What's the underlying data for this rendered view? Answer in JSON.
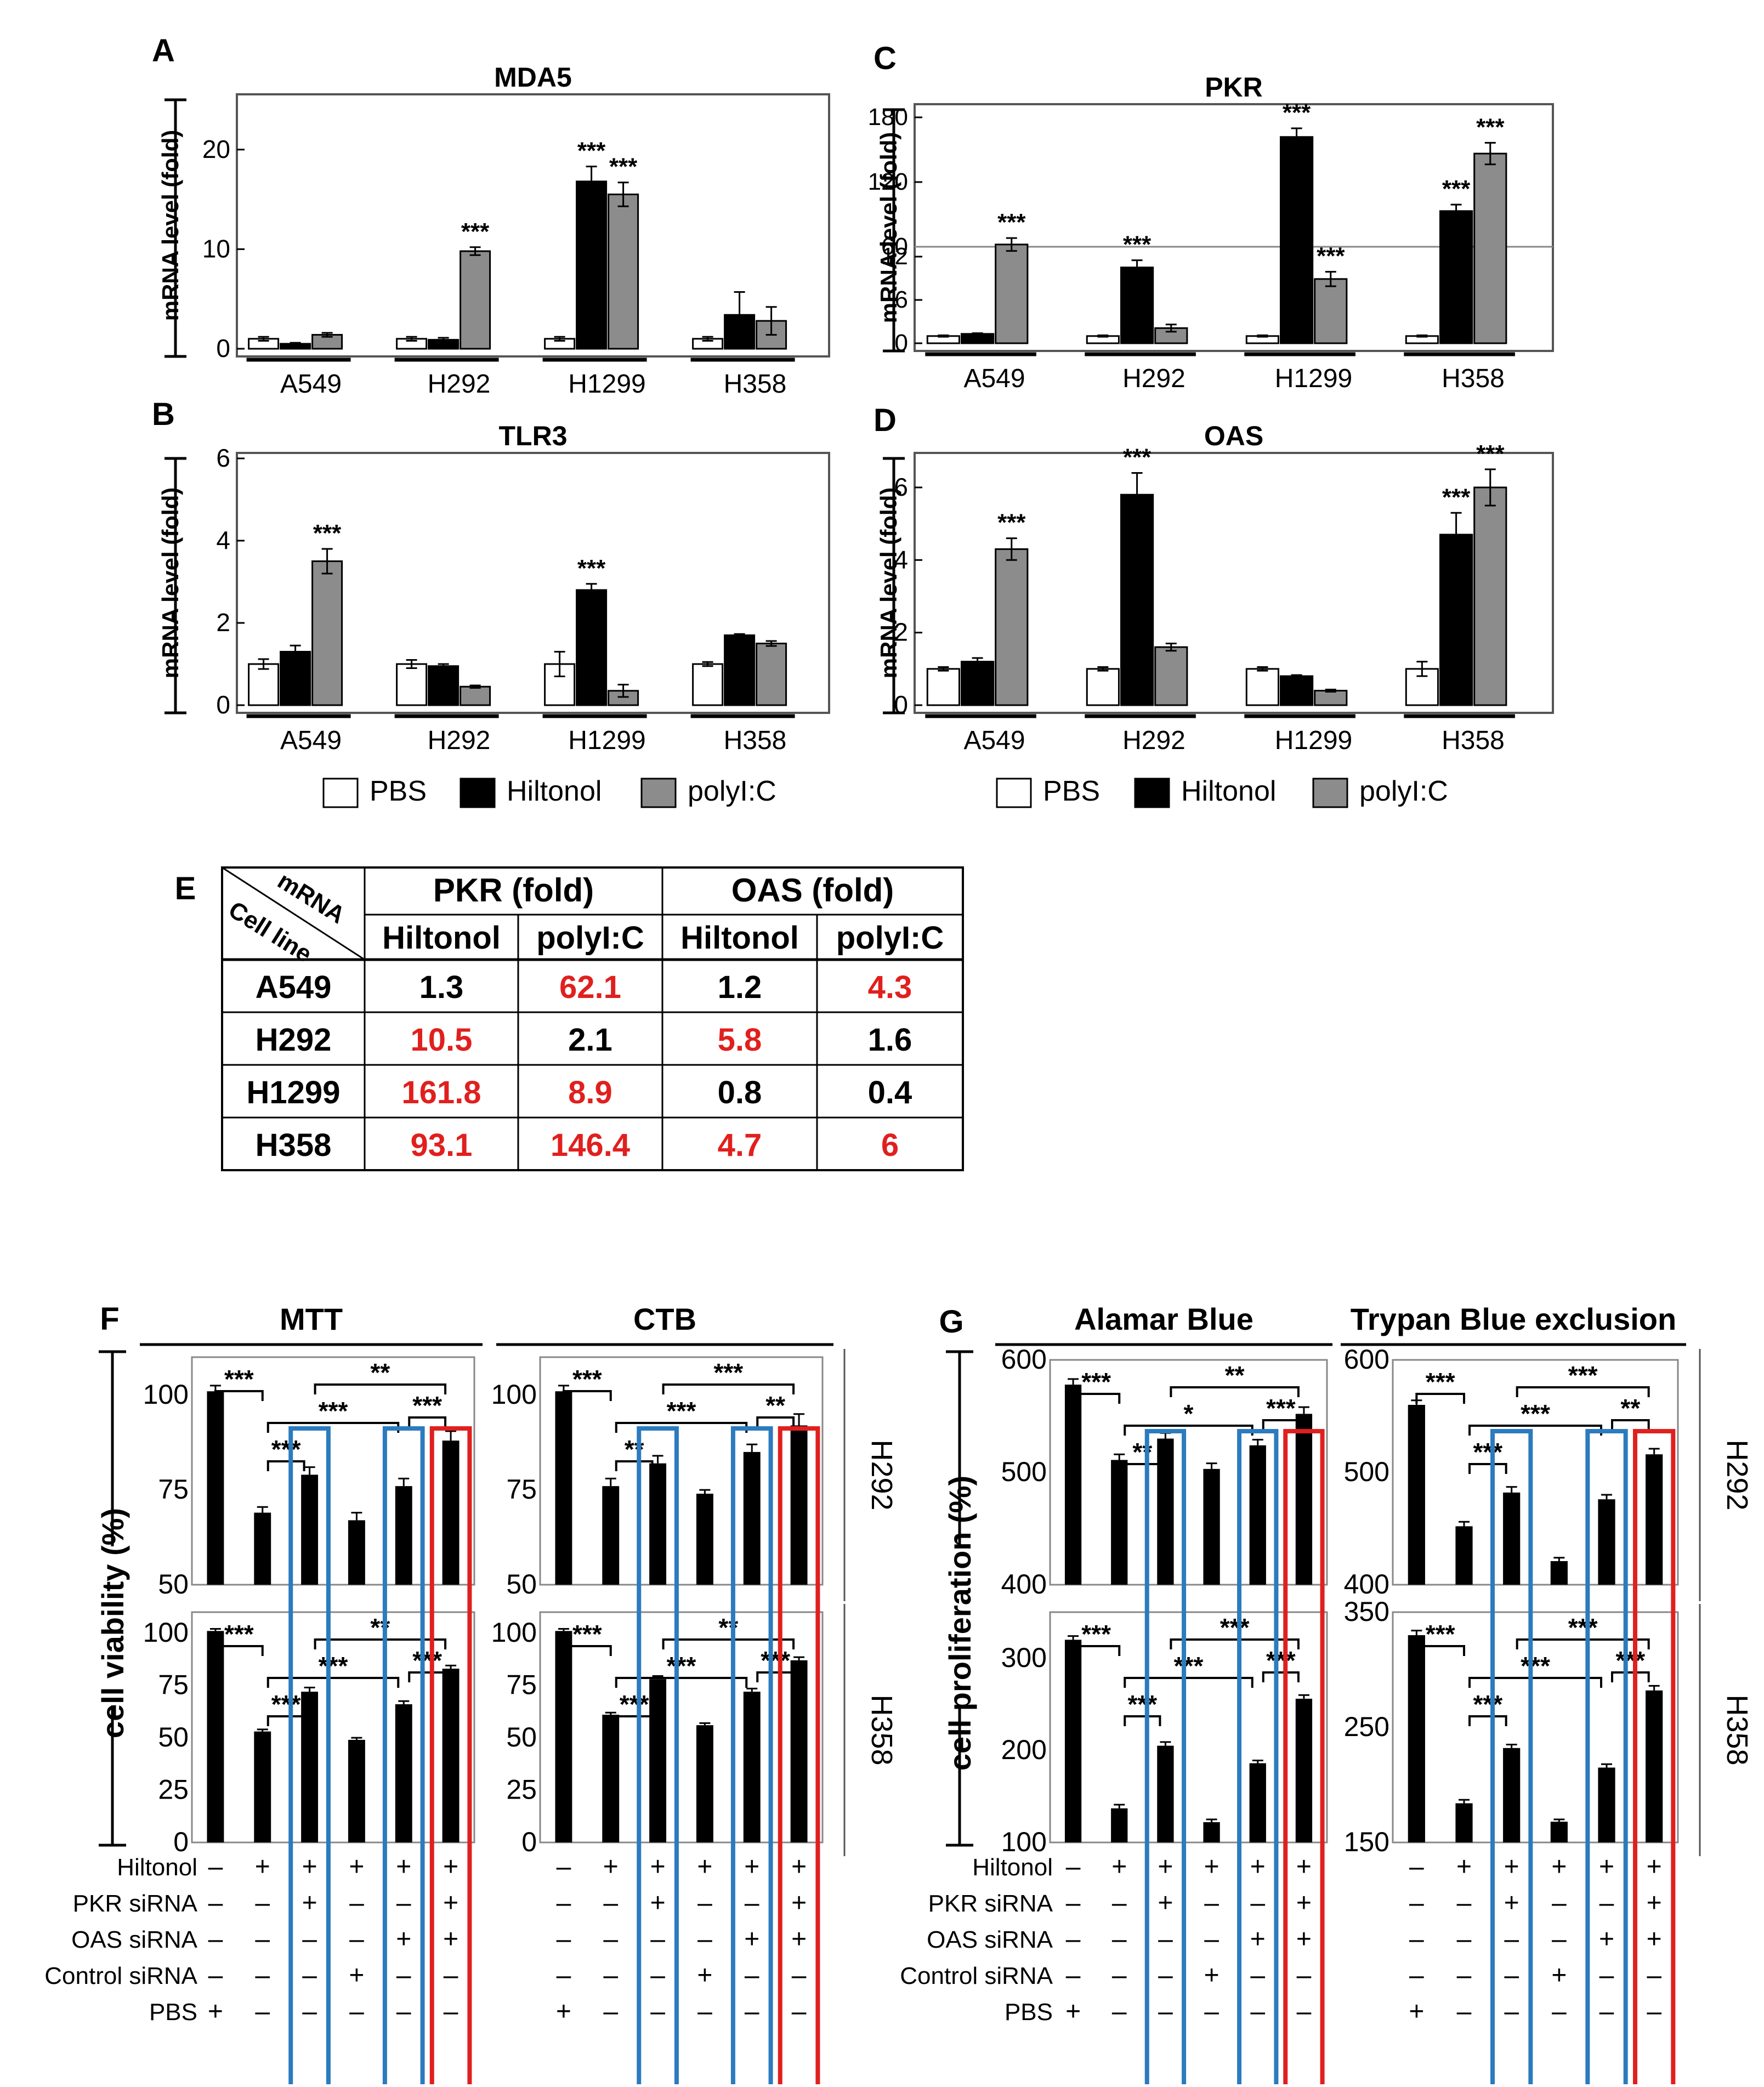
{
  "colors": {
    "pbs": "#ffffff",
    "hiltonol": "#000000",
    "polyIC": "#8c8c8c",
    "red": "#e0201e",
    "blue": "#2b7bbf",
    "black": "#000000"
  },
  "legend": {
    "pbs": "PBS",
    "hiltonol": "Hiltonol",
    "polyIC": "polyI:C"
  },
  "chart_data": [
    {
      "panel": "A",
      "type": "bar",
      "title": "MDA5",
      "ylabel": "mRNA level (fold)",
      "ylim": [
        0,
        25
      ],
      "yticks": [
        0,
        10,
        20
      ],
      "categories": [
        "A549",
        "H292",
        "H1299",
        "H358"
      ],
      "series": [
        {
          "name": "PBS",
          "values": [
            1.0,
            1.0,
            1.0,
            1.0
          ],
          "errors": [
            0.2,
            0.2,
            0.2,
            0.2
          ]
        },
        {
          "name": "Hiltonol",
          "values": [
            0.5,
            0.9,
            16.8,
            3.4
          ],
          "errors": [
            0.1,
            0.2,
            1.5,
            2.3
          ]
        },
        {
          "name": "polyI:C",
          "values": [
            1.4,
            9.8,
            15.5,
            2.8
          ],
          "errors": [
            0.2,
            0.4,
            1.2,
            1.4
          ]
        }
      ],
      "sig": [
        {
          "cat": 1,
          "series": 2,
          "text": "***"
        },
        {
          "cat": 2,
          "series": 1,
          "text": "***"
        },
        {
          "cat": 2,
          "series": 2,
          "text": "***"
        }
      ]
    },
    {
      "panel": "B",
      "type": "bar",
      "title": "TLR3",
      "ylabel": "mRNA level (fold)",
      "ylim": [
        0,
        6
      ],
      "yticks": [
        0,
        2,
        4,
        6
      ],
      "categories": [
        "A549",
        "H292",
        "H1299",
        "H358"
      ],
      "series": [
        {
          "name": "PBS",
          "values": [
            1.0,
            1.0,
            1.0,
            1.0
          ],
          "errors": [
            0.12,
            0.1,
            0.3,
            0.05
          ]
        },
        {
          "name": "Hiltonol",
          "values": [
            1.3,
            0.95,
            2.8,
            1.7
          ],
          "errors": [
            0.15,
            0.05,
            0.15,
            0.03
          ]
        },
        {
          "name": "polyI:C",
          "values": [
            3.5,
            0.45,
            0.35,
            1.5
          ],
          "errors": [
            0.3,
            0.03,
            0.15,
            0.06
          ]
        }
      ],
      "sig": [
        {
          "cat": 0,
          "series": 2,
          "text": "***"
        },
        {
          "cat": 2,
          "series": 1,
          "text": "***"
        }
      ]
    },
    {
      "panel": "C",
      "type": "bar",
      "title": "PKR",
      "ylabel": "mRNA level (fold)",
      "ybreak": [
        12,
        60
      ],
      "lower_ticks": [
        0,
        6,
        12
      ],
      "upper_ticks": [
        60,
        120,
        180
      ],
      "categories": [
        "A549",
        "H292",
        "H1299",
        "H358"
      ],
      "series": [
        {
          "name": "PBS",
          "values": [
            1.0,
            1.0,
            1.0,
            1.0
          ],
          "errors": [
            0.1,
            0.1,
            0.1,
            0.1
          ]
        },
        {
          "name": "Hiltonol",
          "values": [
            1.3,
            10.5,
            161.8,
            93.1
          ],
          "errors": [
            0.1,
            1.0,
            8,
            6
          ]
        },
        {
          "name": "polyI:C",
          "values": [
            62.1,
            2.1,
            8.9,
            146.4
          ],
          "errors": [
            6,
            0.5,
            1.0,
            10
          ]
        }
      ],
      "sig": [
        {
          "cat": 0,
          "series": 2,
          "text": "***"
        },
        {
          "cat": 1,
          "series": 1,
          "text": "***"
        },
        {
          "cat": 2,
          "series": 1,
          "text": "***"
        },
        {
          "cat": 2,
          "series": 2,
          "text": "***"
        },
        {
          "cat": 3,
          "series": 1,
          "text": "***"
        },
        {
          "cat": 3,
          "series": 2,
          "text": "***"
        }
      ]
    },
    {
      "panel": "D",
      "type": "bar",
      "title": "OAS",
      "ylabel": "mRNA level (fold)",
      "ylim": [
        0,
        6.8
      ],
      "yticks": [
        0,
        2,
        4,
        6
      ],
      "categories": [
        "A549",
        "H292",
        "H1299",
        "H358"
      ],
      "series": [
        {
          "name": "PBS",
          "values": [
            1.0,
            1.0,
            1.0,
            1.0
          ],
          "errors": [
            0.05,
            0.05,
            0.05,
            0.2
          ]
        },
        {
          "name": "Hiltonol",
          "values": [
            1.2,
            5.8,
            0.8,
            4.7
          ],
          "errors": [
            0.1,
            0.6,
            0.03,
            0.6
          ]
        },
        {
          "name": "polyI:C",
          "values": [
            4.3,
            1.6,
            0.4,
            6.0
          ],
          "errors": [
            0.3,
            0.1,
            0.03,
            0.5
          ]
        }
      ],
      "sig": [
        {
          "cat": 0,
          "series": 2,
          "text": "***"
        },
        {
          "cat": 1,
          "series": 1,
          "text": "***"
        },
        {
          "cat": 3,
          "series": 1,
          "text": "***"
        },
        {
          "cat": 3,
          "series": 2,
          "text": "***"
        }
      ]
    },
    {
      "panel": "F",
      "type": "bar",
      "title": "MTT",
      "ylabel": "cell viability (%)",
      "cell_line": "H292",
      "ylim": [
        50,
        110
      ],
      "yticks": [
        50,
        75,
        100
      ],
      "values": [
        101,
        69,
        79,
        67,
        76,
        88
      ],
      "errors": [
        1.5,
        1.5,
        2,
        2,
        2,
        2.5
      ]
    },
    {
      "panel": "F",
      "type": "bar",
      "title": "CTB",
      "ylabel": "cell viability (%)",
      "cell_line": "H292",
      "ylim": [
        50,
        110
      ],
      "yticks": [
        50,
        75,
        100
      ],
      "values": [
        101,
        76,
        82,
        74,
        85,
        92
      ],
      "errors": [
        1.5,
        2,
        2,
        1,
        2,
        3
      ]
    },
    {
      "panel": "F",
      "type": "bar",
      "title": "MTT",
      "ylabel": "cell viability (%)",
      "cell_line": "H358",
      "ylim": [
        0,
        110
      ],
      "yticks": [
        0,
        25,
        50,
        75,
        100
      ],
      "values": [
        101,
        53,
        72,
        49,
        66,
        83
      ],
      "errors": [
        1,
        1,
        2,
        1,
        1.5,
        1.5
      ]
    },
    {
      "panel": "F",
      "type": "bar",
      "title": "CTB",
      "ylabel": "cell viability (%)",
      "cell_line": "H358",
      "ylim": [
        0,
        110
      ],
      "yticks": [
        0,
        25,
        50,
        75,
        100
      ],
      "values": [
        101,
        61,
        78,
        56,
        72,
        87
      ],
      "errors": [
        1,
        1,
        1.5,
        1,
        1.5,
        1.5
      ]
    },
    {
      "panel": "G",
      "type": "bar",
      "title": "Alamar Blue",
      "ylabel": "cell proliferation (%)",
      "cell_line": "H292",
      "ylim": [
        400,
        600
      ],
      "yticks": [
        400,
        500,
        600
      ],
      "values": [
        578,
        511,
        530,
        503,
        524,
        552
      ],
      "errors": [
        5,
        5,
        5,
        5,
        5,
        6
      ]
    },
    {
      "panel": "G",
      "type": "bar",
      "title": "Trypan Blue exclusion",
      "ylabel": "cell proliferation (%)",
      "cell_line": "H292",
      "ylim": [
        400,
        600
      ],
      "yticks": [
        400,
        500,
        600
      ],
      "values": [
        560,
        452,
        482,
        421,
        476,
        516
      ],
      "errors": [
        4,
        4,
        5,
        3,
        4,
        5
      ]
    },
    {
      "panel": "G",
      "type": "bar",
      "title": "Alamar Blue",
      "ylabel": "cell proliferation (%)",
      "cell_line": "H358",
      "ylim": [
        100,
        350
      ],
      "yticks": [
        100,
        200,
        300
      ],
      "values": [
        320,
        137,
        205,
        122,
        186,
        256
      ],
      "errors": [
        4,
        4,
        4,
        3,
        3,
        4
      ]
    },
    {
      "panel": "G",
      "type": "bar",
      "title": "Trypan Blue exclusion",
      "ylabel": "cell proliferation (%)",
      "cell_line": "H358",
      "ylim": [
        150,
        350
      ],
      "yticks": [
        150,
        250,
        350
      ],
      "values": [
        330,
        184,
        232,
        168,
        215,
        282
      ],
      "errors": [
        4,
        3,
        3,
        2,
        3,
        4
      ]
    }
  ],
  "table_e": {
    "panel": "E",
    "corner_top": "mRNA",
    "corner_bottom": "Cell line",
    "groups": [
      "PKR (fold)",
      "OAS (fold)"
    ],
    "subheaders": [
      "Hiltonol",
      "polyI:C",
      "Hiltonol",
      "polyI:C"
    ],
    "rows": [
      {
        "line": "A549",
        "cells": [
          "1.3",
          "62.1",
          "1.2",
          "4.3"
        ],
        "highlight": [
          false,
          true,
          false,
          true
        ]
      },
      {
        "line": "H292",
        "cells": [
          "10.5",
          "2.1",
          "5.8",
          "1.6"
        ],
        "highlight": [
          true,
          false,
          true,
          false
        ]
      },
      {
        "line": "H1299",
        "cells": [
          "161.8",
          "8.9",
          "0.8",
          "0.4"
        ],
        "highlight": [
          true,
          true,
          false,
          false
        ]
      },
      {
        "line": "H358",
        "cells": [
          "93.1",
          "146.4",
          "4.7",
          "6"
        ],
        "highlight": [
          true,
          true,
          true,
          true
        ]
      }
    ]
  },
  "treatments": {
    "labels": [
      "Hiltonol",
      "PKR siRNA",
      "OAS siRNA",
      "Control siRNA",
      "PBS"
    ],
    "matrix": [
      [
        "–",
        "+",
        "+",
        "+",
        "+",
        "+"
      ],
      [
        "–",
        "–",
        "+",
        "–",
        "–",
        "+"
      ],
      [
        "–",
        "–",
        "–",
        "–",
        "+",
        "+"
      ],
      [
        "–",
        "–",
        "–",
        "+",
        "–",
        "–"
      ],
      [
        "+",
        "–",
        "–",
        "–",
        "–",
        "–"
      ]
    ]
  },
  "sig_fg": [
    {
      "from": 0,
      "to": 1,
      "level": 0,
      "text": "***"
    },
    {
      "from": 1,
      "to": 2,
      "level": 1,
      "text": "***"
    },
    {
      "from": 1,
      "to": 4,
      "level": 2,
      "text": "***"
    },
    {
      "from": 2,
      "to": 5,
      "level": 3,
      "text": "**"
    },
    {
      "from": 4,
      "to": 5,
      "level": 4,
      "text": "***"
    }
  ],
  "sig_fg_overrides": {
    "CTB-H292": [
      "***",
      "**",
      "***",
      "***",
      "**"
    ],
    "AB-H292": [
      "***",
      "**",
      "*",
      "**",
      "***"
    ],
    "TB-H292": [
      "***",
      "***",
      "***",
      "***",
      "**"
    ],
    "MTT-H292": [
      "***",
      "***",
      "***",
      "**",
      "***"
    ],
    "MTT-H358": [
      "***",
      "***",
      "***",
      "**",
      "***"
    ],
    "CTB-H358": [
      "***",
      "***",
      "***",
      "**",
      "***"
    ],
    "AB-H358": [
      "***",
      "***",
      "***",
      "***",
      "***"
    ],
    "TB-H358": [
      "***",
      "***",
      "***",
      "***",
      "***"
    ]
  }
}
